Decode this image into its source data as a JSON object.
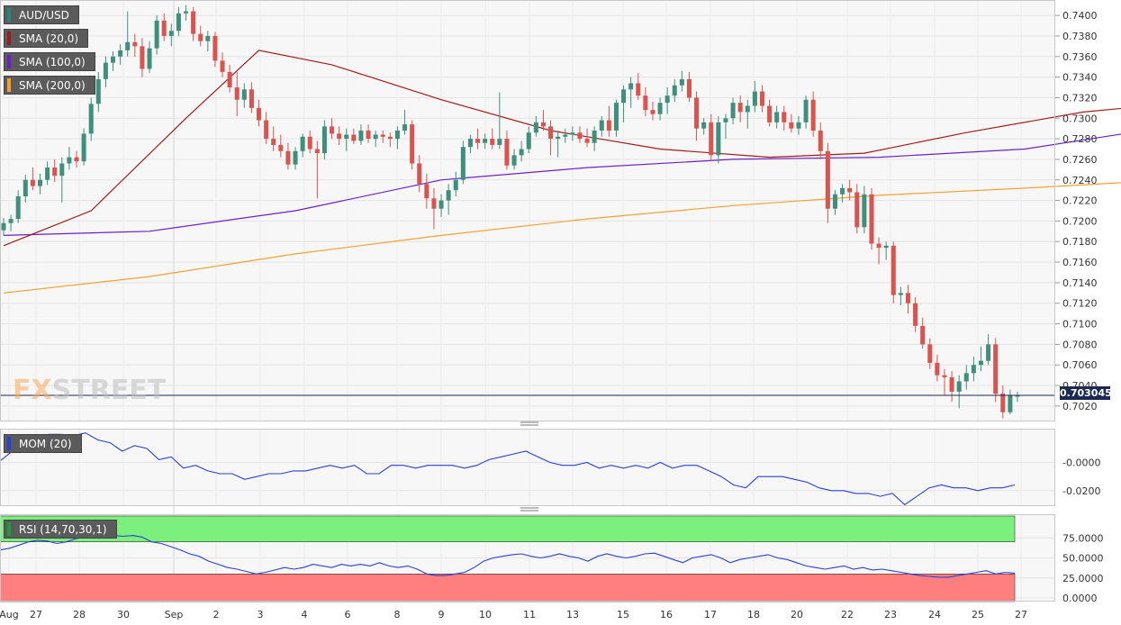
{
  "legend": {
    "main": [
      {
        "label": "AUD/USD",
        "color": "#1f8c7a"
      },
      {
        "label": "SMA (20,0)",
        "color": "#9b1c1c"
      },
      {
        "label": "SMA (100,0)",
        "color": "#6b21c8"
      },
      {
        "label": "SMA (200,0)",
        "color": "#f2a233"
      }
    ],
    "mom": {
      "label": "MOM (20)",
      "color": "#2b3fd6"
    },
    "rsi": {
      "label": "RSI (14,70,30,1)",
      "color": "#1e9e3a"
    }
  },
  "watermark": {
    "fx": "FX",
    "street": "STREET"
  },
  "current_price_label": "0.703045",
  "colors": {
    "up": "#3f8f7c",
    "down": "#d9534f",
    "sma20": "#a31c1c",
    "sma100": "#6b21c8",
    "sma200": "#f2a233",
    "mom": "#2b3fd6",
    "rsi": "#2b3fd6",
    "overbought_fill": "#7cf07c",
    "oversold_fill": "#ff7f7f",
    "price_line": "#1c2a52"
  },
  "chart_data": {
    "type": "candlestick",
    "x_ticks": [
      "Aug",
      "27",
      "28",
      "30",
      "Sep",
      "2",
      "3",
      "4",
      "6",
      "8",
      "9",
      "10",
      "11",
      "13",
      "15",
      "16",
      "17",
      "18",
      "20",
      "22",
      "23",
      "24",
      "25",
      "27"
    ],
    "price_axis": {
      "ticks": [
        "0.7400",
        "0.7380",
        "0.7360",
        "0.7340",
        "0.7320",
        "0.7300",
        "0.7280",
        "0.7260",
        "0.7240",
        "0.7220",
        "0.7200",
        "0.7180",
        "0.7160",
        "0.7140",
        "0.7120",
        "0.7100",
        "0.7080",
        "0.7060",
        "0.7040",
        "0.7020"
      ],
      "ylim": [
        0.7005,
        0.7415
      ]
    },
    "current_price": 0.703045,
    "candles": [
      [
        0.7191,
        0.7203,
        0.7186,
        0.7198
      ],
      [
        0.7198,
        0.7206,
        0.719,
        0.7202
      ],
      [
        0.7202,
        0.723,
        0.7198,
        0.7224
      ],
      [
        0.7224,
        0.7245,
        0.7218,
        0.724
      ],
      [
        0.724,
        0.7252,
        0.723,
        0.7234
      ],
      [
        0.7234,
        0.7246,
        0.7226,
        0.724
      ],
      [
        0.724,
        0.7258,
        0.7235,
        0.7252
      ],
      [
        0.7252,
        0.726,
        0.7238,
        0.7244
      ],
      [
        0.7244,
        0.7262,
        0.7218,
        0.7256
      ],
      [
        0.7256,
        0.7272,
        0.725,
        0.7262
      ],
      [
        0.7262,
        0.7268,
        0.7252,
        0.7258
      ],
      [
        0.7258,
        0.729,
        0.7254,
        0.7285
      ],
      [
        0.7285,
        0.732,
        0.7278,
        0.7314
      ],
      [
        0.7314,
        0.7345,
        0.7306,
        0.7338
      ],
      [
        0.7338,
        0.736,
        0.733,
        0.7354
      ],
      [
        0.7354,
        0.7365,
        0.7346,
        0.736
      ],
      [
        0.736,
        0.7372,
        0.7352,
        0.7366
      ],
      [
        0.7366,
        0.7404,
        0.736,
        0.7374
      ],
      [
        0.7374,
        0.7382,
        0.736,
        0.737
      ],
      [
        0.737,
        0.7378,
        0.734,
        0.7348
      ],
      [
        0.7348,
        0.7375,
        0.7344,
        0.7368
      ],
      [
        0.7368,
        0.74,
        0.7362,
        0.7395
      ],
      [
        0.7395,
        0.7402,
        0.7375,
        0.738
      ],
      [
        0.738,
        0.7392,
        0.737,
        0.7385
      ],
      [
        0.7385,
        0.7408,
        0.738,
        0.7402
      ],
      [
        0.7402,
        0.741,
        0.7395,
        0.7404
      ],
      [
        0.7404,
        0.7408,
        0.7375,
        0.7382
      ],
      [
        0.7382,
        0.739,
        0.737,
        0.7375
      ],
      [
        0.7375,
        0.7385,
        0.7365,
        0.738
      ],
      [
        0.738,
        0.7384,
        0.735,
        0.7356
      ],
      [
        0.7356,
        0.7364,
        0.734,
        0.7345
      ],
      [
        0.7345,
        0.7352,
        0.7325,
        0.733
      ],
      [
        0.733,
        0.7345,
        0.7302,
        0.7318
      ],
      [
        0.7318,
        0.7334,
        0.731,
        0.7328
      ],
      [
        0.7328,
        0.7335,
        0.7305,
        0.731
      ],
      [
        0.731,
        0.7318,
        0.7292,
        0.7298
      ],
      [
        0.7298,
        0.7306,
        0.7275,
        0.728
      ],
      [
        0.728,
        0.7292,
        0.7268,
        0.7274
      ],
      [
        0.7274,
        0.7284,
        0.7262,
        0.7268
      ],
      [
        0.7268,
        0.7276,
        0.725,
        0.7255
      ],
      [
        0.7255,
        0.7272,
        0.725,
        0.7268
      ],
      [
        0.7268,
        0.7285,
        0.7262,
        0.7282
      ],
      [
        0.7282,
        0.7288,
        0.7266,
        0.727
      ],
      [
        0.727,
        0.7278,
        0.7222,
        0.7266
      ],
      [
        0.7266,
        0.7298,
        0.726,
        0.7292
      ],
      [
        0.7292,
        0.73,
        0.728,
        0.7285
      ],
      [
        0.7285,
        0.7292,
        0.7274,
        0.728
      ],
      [
        0.728,
        0.729,
        0.7268,
        0.7284
      ],
      [
        0.7284,
        0.729,
        0.7275,
        0.7278
      ],
      [
        0.7278,
        0.7294,
        0.7274,
        0.7288
      ],
      [
        0.7288,
        0.7294,
        0.7276,
        0.728
      ],
      [
        0.728,
        0.7288,
        0.7272,
        0.7284
      ],
      [
        0.7284,
        0.7288,
        0.7276,
        0.7282
      ],
      [
        0.7282,
        0.7286,
        0.7272,
        0.728
      ],
      [
        0.728,
        0.7292,
        0.727,
        0.7288
      ],
      [
        0.7288,
        0.7308,
        0.7284,
        0.7294
      ],
      [
        0.7294,
        0.7298,
        0.725,
        0.7256
      ],
      [
        0.7256,
        0.7264,
        0.7228,
        0.7236
      ],
      [
        0.7236,
        0.7246,
        0.7212,
        0.7222
      ],
      [
        0.7222,
        0.7232,
        0.7192,
        0.7212
      ],
      [
        0.7212,
        0.7226,
        0.7204,
        0.722
      ],
      [
        0.722,
        0.7236,
        0.7206,
        0.723
      ],
      [
        0.723,
        0.7248,
        0.7224,
        0.724
      ],
      [
        0.724,
        0.7278,
        0.7236,
        0.7272
      ],
      [
        0.7272,
        0.7284,
        0.7266,
        0.728
      ],
      [
        0.728,
        0.729,
        0.727,
        0.7276
      ],
      [
        0.7276,
        0.7285,
        0.727,
        0.728
      ],
      [
        0.728,
        0.729,
        0.727,
        0.7274
      ],
      [
        0.7274,
        0.7325,
        0.727,
        0.728
      ],
      [
        0.728,
        0.7288,
        0.725,
        0.7254
      ],
      [
        0.7254,
        0.727,
        0.725,
        0.7264
      ],
      [
        0.7264,
        0.7278,
        0.7258,
        0.727
      ],
      [
        0.727,
        0.7292,
        0.7266,
        0.7286
      ],
      [
        0.7286,
        0.7302,
        0.7282,
        0.7296
      ],
      [
        0.7296,
        0.7308,
        0.7288,
        0.7292
      ],
      [
        0.7292,
        0.7298,
        0.7264,
        0.728
      ],
      [
        0.728,
        0.7288,
        0.7262,
        0.7282
      ],
      [
        0.7282,
        0.729,
        0.7276,
        0.7284
      ],
      [
        0.7284,
        0.7292,
        0.7278,
        0.7286
      ],
      [
        0.7286,
        0.7292,
        0.7276,
        0.728
      ],
      [
        0.728,
        0.729,
        0.7272,
        0.7276
      ],
      [
        0.7276,
        0.7292,
        0.7268,
        0.7288
      ],
      [
        0.7288,
        0.7302,
        0.7282,
        0.7298
      ],
      [
        0.7298,
        0.7312,
        0.7282,
        0.7288
      ],
      [
        0.7288,
        0.7318,
        0.7282,
        0.7315
      ],
      [
        0.7315,
        0.7332,
        0.7296,
        0.7328
      ],
      [
        0.7328,
        0.734,
        0.731,
        0.7334
      ],
      [
        0.7334,
        0.7344,
        0.7318,
        0.7322
      ],
      [
        0.7322,
        0.733,
        0.7302,
        0.7308
      ],
      [
        0.7308,
        0.7316,
        0.7298,
        0.7304
      ],
      [
        0.7304,
        0.732,
        0.7298,
        0.7315
      ],
      [
        0.7315,
        0.733,
        0.7304,
        0.7322
      ],
      [
        0.7322,
        0.7338,
        0.7316,
        0.7332
      ],
      [
        0.7332,
        0.7346,
        0.7326,
        0.7338
      ],
      [
        0.7338,
        0.7345,
        0.7316,
        0.732
      ],
      [
        0.732,
        0.7326,
        0.7278,
        0.729
      ],
      [
        0.729,
        0.73,
        0.7284,
        0.7296
      ],
      [
        0.7296,
        0.7304,
        0.7258,
        0.7264
      ],
      [
        0.7264,
        0.7302,
        0.7256,
        0.7296
      ],
      [
        0.7296,
        0.7304,
        0.728,
        0.73
      ],
      [
        0.73,
        0.732,
        0.7294,
        0.7315
      ],
      [
        0.7315,
        0.7322,
        0.7296,
        0.7306
      ],
      [
        0.7306,
        0.7318,
        0.729,
        0.7312
      ],
      [
        0.7312,
        0.7336,
        0.7306,
        0.7326
      ],
      [
        0.7326,
        0.7332,
        0.7306,
        0.7312
      ],
      [
        0.7312,
        0.7318,
        0.7292,
        0.7296
      ],
      [
        0.7296,
        0.7312,
        0.729,
        0.7306
      ],
      [
        0.7306,
        0.7312,
        0.7288,
        0.7296
      ],
      [
        0.7296,
        0.7304,
        0.7286,
        0.729
      ],
      [
        0.729,
        0.7302,
        0.7284,
        0.7296
      ],
      [
        0.7296,
        0.7322,
        0.729,
        0.7318
      ],
      [
        0.7318,
        0.7326,
        0.7282,
        0.7288
      ],
      [
        0.7288,
        0.7296,
        0.726,
        0.7268
      ],
      [
        0.7268,
        0.7276,
        0.7198,
        0.7212
      ],
      [
        0.7212,
        0.723,
        0.7206,
        0.7226
      ],
      [
        0.7226,
        0.7236,
        0.7218,
        0.7232
      ],
      [
        0.7232,
        0.724,
        0.722,
        0.7228
      ],
      [
        0.7228,
        0.7236,
        0.7188,
        0.7194
      ],
      [
        0.7194,
        0.7234,
        0.7188,
        0.7226
      ],
      [
        0.7226,
        0.7232,
        0.7172,
        0.7178
      ],
      [
        0.7178,
        0.7184,
        0.7158,
        0.7174
      ],
      [
        0.7174,
        0.718,
        0.7162,
        0.7176
      ],
      [
        0.7176,
        0.718,
        0.712,
        0.7128
      ],
      [
        0.7128,
        0.7136,
        0.7118,
        0.713
      ],
      [
        0.713,
        0.7138,
        0.711,
        0.712
      ],
      [
        0.712,
        0.7126,
        0.7092,
        0.7098
      ],
      [
        0.7098,
        0.7106,
        0.7076,
        0.708
      ],
      [
        0.708,
        0.7086,
        0.7056,
        0.7062
      ],
      [
        0.7062,
        0.707,
        0.7044,
        0.705
      ],
      [
        0.705,
        0.7056,
        0.703,
        0.7048
      ],
      [
        0.7048,
        0.7054,
        0.7024,
        0.7034
      ],
      [
        0.7034,
        0.705,
        0.7018,
        0.7044
      ],
      [
        0.7044,
        0.706,
        0.7036,
        0.7052
      ],
      [
        0.7052,
        0.7068,
        0.7044,
        0.706
      ],
      [
        0.706,
        0.7078,
        0.7054,
        0.7064
      ],
      [
        0.7064,
        0.709,
        0.706,
        0.708
      ],
      [
        0.708,
        0.7086,
        0.7024,
        0.7032
      ],
      [
        0.7032,
        0.704,
        0.7008,
        0.7014
      ],
      [
        0.7014,
        0.7036,
        0.7012,
        0.703
      ],
      [
        0.703,
        0.7034,
        0.7024,
        0.703
      ]
    ],
    "sma20": [
      [
        0,
        0.7176
      ],
      [
        12,
        0.721
      ],
      [
        25,
        0.73
      ],
      [
        35,
        0.7366
      ],
      [
        45,
        0.7352
      ],
      [
        60,
        0.7318
      ],
      [
        75,
        0.7288
      ],
      [
        90,
        0.727
      ],
      [
        105,
        0.7262
      ],
      [
        118,
        0.7266
      ],
      [
        132,
        0.7286
      ],
      [
        148,
        0.7306
      ],
      [
        160,
        0.7314
      ],
      [
        170,
        0.7312
      ],
      [
        180,
        0.7308
      ],
      [
        192,
        0.7302
      ],
      [
        200,
        0.7278
      ],
      [
        208,
        0.725
      ],
      [
        216,
        0.7205
      ],
      [
        223,
        0.715
      ],
      [
        230,
        0.7112
      ],
      [
        236,
        0.709
      ],
      [
        240,
        0.7074
      ]
    ],
    "sma100": [
      [
        0,
        0.7186
      ],
      [
        20,
        0.719
      ],
      [
        40,
        0.721
      ],
      [
        60,
        0.724
      ],
      [
        80,
        0.7252
      ],
      [
        100,
        0.726
      ],
      [
        120,
        0.7262
      ],
      [
        140,
        0.727
      ],
      [
        160,
        0.7292
      ],
      [
        180,
        0.7302
      ],
      [
        195,
        0.73
      ],
      [
        205,
        0.729
      ],
      [
        215,
        0.7275
      ],
      [
        225,
        0.726
      ],
      [
        234,
        0.7246
      ],
      [
        240,
        0.7238
      ]
    ],
    "sma200": [
      [
        0,
        0.713
      ],
      [
        20,
        0.7146
      ],
      [
        40,
        0.7168
      ],
      [
        60,
        0.7186
      ],
      [
        80,
        0.7202
      ],
      [
        100,
        0.7215
      ],
      [
        120,
        0.7225
      ],
      [
        140,
        0.7232
      ],
      [
        160,
        0.724
      ],
      [
        180,
        0.7246
      ],
      [
        200,
        0.7248
      ],
      [
        220,
        0.7244
      ],
      [
        240,
        0.7239
      ]
    ],
    "mom": {
      "ticks": [
        "-0.0000",
        "-0.0200"
      ],
      "ylim": [
        -0.031,
        0.024
      ],
      "values": [
        0.001,
        0.008,
        0.014,
        0.018,
        0.02,
        0.02,
        0.019,
        0.021,
        0.016,
        0.014,
        0.008,
        0.012,
        0.01,
        0.002,
        0.004,
        -0.004,
        -0.002,
        -0.006,
        -0.008,
        -0.008,
        -0.012,
        -0.01,
        -0.008,
        -0.008,
        -0.006,
        -0.006,
        -0.004,
        -0.002,
        -0.004,
        -0.002,
        -0.008,
        -0.008,
        -0.002,
        -0.002,
        -0.004,
        -0.002,
        -0.002,
        -0.002,
        -0.004,
        -0.002,
        0.002,
        0.004,
        0.006,
        0.008,
        0.004,
        0.0,
        -0.002,
        -0.002,
        0.0,
        -0.004,
        -0.002,
        -0.004,
        -0.002,
        -0.004,
        0.0,
        -0.004,
        -0.002,
        -0.002,
        -0.006,
        -0.01,
        -0.016,
        -0.018,
        -0.01,
        -0.01,
        -0.01,
        -0.012,
        -0.014,
        -0.018,
        -0.02,
        -0.02,
        -0.022,
        -0.022,
        -0.024,
        -0.022,
        -0.03,
        -0.024,
        -0.018,
        -0.016,
        -0.018,
        -0.018,
        -0.02,
        -0.018,
        -0.018,
        -0.016
      ]
    },
    "rsi": {
      "ticks": [
        "75.0000",
        "50.0000",
        "25.0000",
        "0.0000"
      ],
      "ylim": [
        0,
        100
      ],
      "overbought": 70,
      "oversold": 30,
      "values": [
        60,
        62,
        66,
        70,
        72,
        71,
        68,
        70,
        74,
        76,
        77,
        78,
        78,
        77,
        78,
        76,
        70,
        68,
        64,
        60,
        55,
        52,
        46,
        42,
        38,
        36,
        33,
        30,
        32,
        35,
        38,
        36,
        38,
        42,
        40,
        38,
        42,
        40,
        42,
        40,
        44,
        40,
        38,
        40,
        36,
        30,
        28,
        28,
        30,
        32,
        38,
        46,
        50,
        52,
        54,
        55,
        52,
        50,
        52,
        55,
        52,
        50,
        46,
        52,
        55,
        52,
        50,
        52,
        55,
        56,
        52,
        48,
        44,
        50,
        52,
        54,
        50,
        44,
        48,
        50,
        52,
        54,
        50,
        48,
        44,
        40,
        38,
        36,
        38,
        40,
        36,
        38,
        35,
        36,
        34,
        32,
        30,
        28,
        27,
        26,
        26,
        28,
        30,
        32,
        34,
        30,
        32,
        31
      ]
    }
  }
}
